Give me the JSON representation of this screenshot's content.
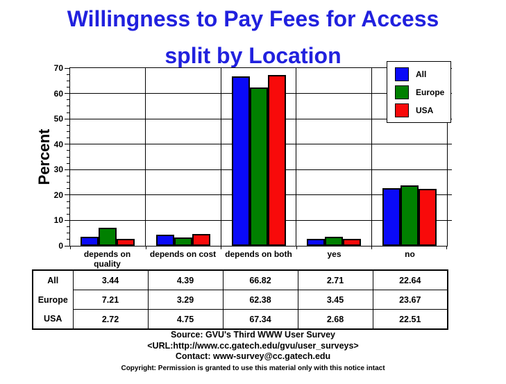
{
  "title": {
    "line1": "Willingness to Pay Fees for Access",
    "line2": "split by Location",
    "color": "#2121DE"
  },
  "chart_data": {
    "type": "bar",
    "title": "Willingness to Pay Fees for Access split by Location",
    "xlabel": "",
    "ylabel": "Percent",
    "ylim": [
      0,
      70
    ],
    "ytick_interval": 10,
    "ytick_minor_interval": 2.5,
    "grid": true,
    "legend_position": "top-right",
    "categories": [
      "depends on quality",
      "depends on cost",
      "depends on both",
      "yes",
      "no"
    ],
    "series": [
      {
        "name": "All",
        "color": "#0A0AF8",
        "values": [
          3.44,
          4.39,
          66.82,
          2.71,
          22.64
        ]
      },
      {
        "name": "Europe",
        "color": "#008000",
        "values": [
          7.21,
          3.29,
          62.38,
          3.45,
          23.67
        ]
      },
      {
        "name": "USA",
        "color": "#F80A0A",
        "values": [
          2.72,
          4.75,
          67.34,
          2.68,
          22.51
        ]
      }
    ]
  },
  "table": {
    "rows": [
      {
        "label": "All",
        "cells": [
          "3.44",
          "4.39",
          "66.82",
          "2.71",
          "22.64"
        ]
      },
      {
        "label": "Europe",
        "cells": [
          "7.21",
          "3.29",
          "62.38",
          "3.45",
          "23.67"
        ]
      },
      {
        "label": "USA",
        "cells": [
          "2.72",
          "4.75",
          "67.34",
          "2.68",
          "22.51"
        ]
      }
    ]
  },
  "footer": {
    "line1": "Source: GVU's Third WWW User Survey",
    "line2": "<URL:http://www.cc.gatech.edu/gvu/user_surveys>",
    "line3": "Contact: www-survey@cc.gatech.edu",
    "copyright": "Copyright: Permission is granted to use this material only with this notice intact"
  }
}
